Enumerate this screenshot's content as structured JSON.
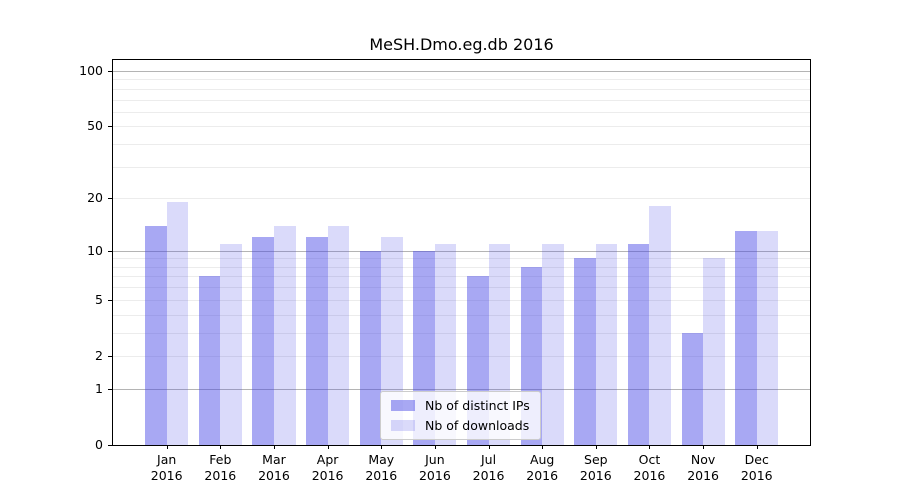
{
  "title": "MeSH.Dmo.eg.db 2016",
  "legend": {
    "items": [
      {
        "label": "Nb of distinct IPs",
        "color": "rgba(70,70,230,0.47)"
      },
      {
        "label": "Nb of downloads",
        "color": "rgba(70,70,230,0.20)"
      }
    ]
  },
  "colors": {
    "background": "#ffffff",
    "bar_distinct_ips": "rgba(70,70,230,0.47)",
    "bar_downloads": "rgba(70,70,230,0.20)",
    "grid_major": "#b4b4b4",
    "grid_minor": "#ececec",
    "axis": "#000000",
    "legend_border": "#cccccc"
  },
  "chart_data": {
    "type": "bar",
    "title": "MeSH.Dmo.eg.db 2016",
    "categories": [
      "Jan",
      "Feb",
      "Mar",
      "Apr",
      "May",
      "Jun",
      "Jul",
      "Aug",
      "Sep",
      "Oct",
      "Nov",
      "Dec"
    ],
    "year_label": "2016",
    "series": [
      {
        "name": "Nb of distinct IPs",
        "color": "rgba(70,70,230,0.47)",
        "values": [
          14,
          7,
          12,
          12,
          10,
          10,
          7,
          8,
          9,
          11,
          3,
          13
        ]
      },
      {
        "name": "Nb of downloads",
        "color": "rgba(70,70,230,0.20)",
        "values": [
          19,
          11,
          14,
          14,
          12,
          11,
          11,
          11,
          11,
          18,
          9,
          13
        ]
      }
    ],
    "xlabel": "",
    "ylabel": "",
    "yscale": "log10(value+1)",
    "ylim": [
      0,
      115
    ],
    "yticks": [
      0,
      1,
      2,
      5,
      10,
      20,
      50,
      100
    ],
    "major_gridlines": [
      1,
      10,
      100
    ],
    "minor_gridlines": [
      2,
      3,
      4,
      5,
      6,
      7,
      8,
      9,
      20,
      30,
      40,
      50,
      60,
      70,
      80,
      90
    ],
    "grid": "on",
    "legend_position": "lower center"
  }
}
